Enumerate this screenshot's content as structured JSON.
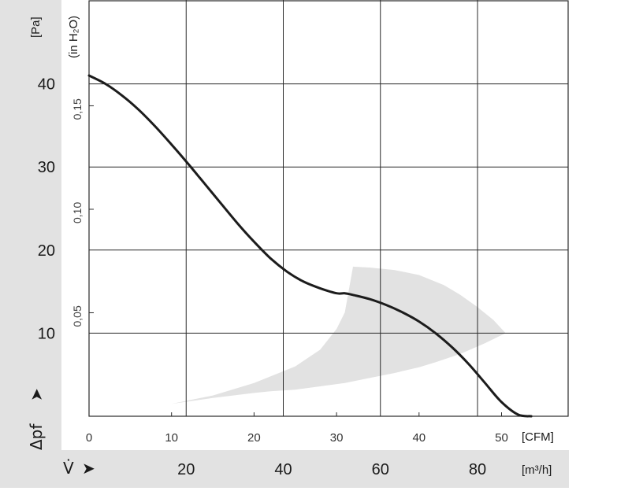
{
  "chart_data": {
    "type": "line",
    "title": "",
    "xlabel": "V̇",
    "ylabel": "Δpf",
    "units": {
      "pa": "[Pa]",
      "inh2o": "(in H₂O)",
      "cfm": "[CFM]",
      "m3h": "[m³/h]"
    },
    "x_unit": "CFM",
    "xlim": [
      0,
      56
    ],
    "ylim": [
      0,
      50
    ],
    "y_unit": "Pa",
    "grid": true,
    "ticks": {
      "pa": [
        "10",
        "20",
        "30",
        "40"
      ],
      "pa_values": [
        10,
        20,
        30,
        40
      ],
      "inh2o": [
        "0,05",
        "0,10",
        "0,15"
      ],
      "inh2o_values": [
        0.05,
        0.1,
        0.15
      ],
      "cfm": [
        "0",
        "10",
        "20",
        "30",
        "40",
        "50"
      ],
      "cfm_values": [
        0,
        10,
        20,
        30,
        40,
        50
      ],
      "m3h": [
        "20",
        "40",
        "60",
        "80"
      ],
      "m3h_values": [
        20,
        40,
        60,
        80
      ]
    },
    "series": [
      {
        "x": [
          0,
          2,
          4,
          6,
          8,
          10,
          12,
          14,
          16,
          18,
          20,
          22,
          24,
          26,
          28,
          30,
          31,
          32,
          34,
          36,
          38,
          40,
          42,
          44,
          46,
          48,
          50,
          52,
          53.6
        ],
        "y": [
          41.0,
          40.0,
          38.6,
          36.9,
          34.9,
          32.7,
          30.4,
          28.0,
          25.6,
          23.2,
          21.0,
          19.0,
          17.4,
          16.2,
          15.4,
          14.8,
          14.8,
          14.6,
          14.1,
          13.4,
          12.5,
          11.4,
          10.0,
          8.3,
          6.3,
          4.0,
          1.7,
          0.2,
          0
        ]
      }
    ],
    "operating_region": {
      "upper_x": [
        0,
        5,
        10,
        15,
        20,
        25,
        28,
        30,
        31,
        32,
        34,
        37,
        40,
        43,
        45,
        47,
        49,
        50.5
      ],
      "upper_y": [
        0,
        0.7,
        1.5,
        2.5,
        4.0,
        6.0,
        8.0,
        10.5,
        12.5,
        18.0,
        17.9,
        17.6,
        17.0,
        15.8,
        14.6,
        13.2,
        11.6,
        10.0
      ],
      "lower_x": [
        50.5,
        48,
        45,
        42,
        40,
        37,
        34,
        31,
        28,
        25,
        22,
        20,
        15,
        10,
        5,
        0
      ],
      "lower_y": [
        10.0,
        8.8,
        7.5,
        6.5,
        5.9,
        5.2,
        4.6,
        4.0,
        3.6,
        3.2,
        3.0,
        2.8,
        2.2,
        1.5,
        0.7,
        0
      ]
    },
    "colors": {
      "background": "#ffffff",
      "band": "#e2e2e2",
      "grid": "#2a2a2a",
      "curve": "#1c1c1c",
      "text": "#1a1a1a"
    }
  }
}
